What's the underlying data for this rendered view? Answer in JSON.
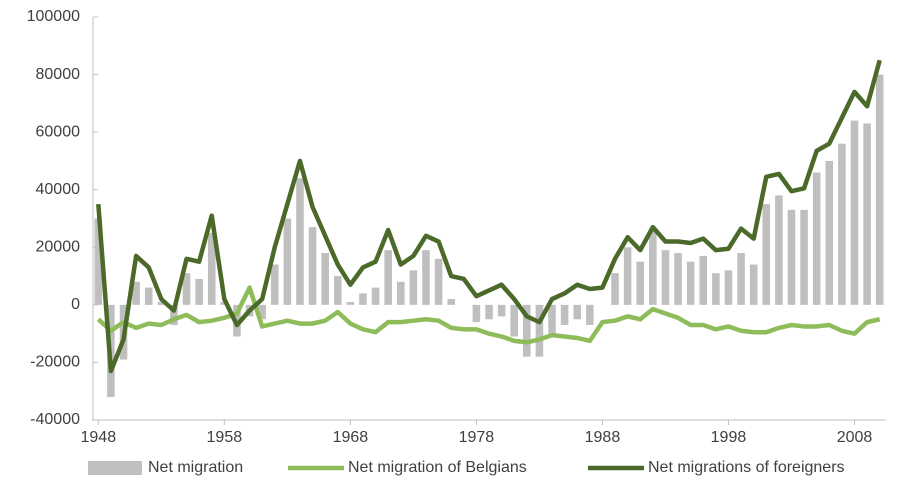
{
  "chart_data": {
    "type": "combo",
    "x": [
      1948,
      1949,
      1950,
      1951,
      1952,
      1953,
      1954,
      1955,
      1956,
      1957,
      1958,
      1959,
      1960,
      1961,
      1962,
      1963,
      1964,
      1965,
      1966,
      1967,
      1968,
      1969,
      1970,
      1971,
      1972,
      1973,
      1974,
      1975,
      1976,
      1977,
      1978,
      1979,
      1980,
      1981,
      1982,
      1983,
      1984,
      1985,
      1986,
      1987,
      1988,
      1989,
      1990,
      1991,
      1992,
      1993,
      1994,
      1995,
      1996,
      1997,
      1998,
      1999,
      2000,
      2001,
      2002,
      2003,
      2004,
      2005,
      2006,
      2007,
      2008,
      2009,
      2010
    ],
    "series": [
      {
        "name": "Net migration",
        "type": "bar",
        "color": "#bfbfbf",
        "values": [
          30000,
          -32000,
          -19000,
          8000,
          6000,
          1000,
          -7000,
          11000,
          9000,
          25000,
          1000,
          -11000,
          -4000,
          -5000,
          14000,
          30000,
          44000,
          27000,
          18000,
          10000,
          1000,
          4000,
          6000,
          19000,
          8000,
          12000,
          19000,
          16000,
          2000,
          0,
          -6000,
          -5000,
          -4000,
          -11000,
          -18000,
          -18000,
          -10000,
          -7000,
          -5000,
          -7000,
          0,
          11000,
          20000,
          15000,
          26000,
          19000,
          18000,
          15000,
          17000,
          11000,
          12000,
          18000,
          14000,
          35000,
          38000,
          33000,
          33000,
          46000,
          50000,
          56000,
          64000,
          63000,
          80000
        ]
      },
      {
        "name": "Net migration of Belgians",
        "type": "line",
        "color": "#8fbc5a",
        "values": [
          -5000,
          -9000,
          -6000,
          -8000,
          -6500,
          -7000,
          -5000,
          -3500,
          -6000,
          -5500,
          -4500,
          -3000,
          6000,
          -7500,
          -6500,
          -5500,
          -6500,
          -6500,
          -5500,
          -2500,
          -6500,
          -8500,
          -9500,
          -6000,
          -6000,
          -5500,
          -5000,
          -5500,
          -8000,
          -8500,
          -8500,
          -10000,
          -11000,
          -12500,
          -13000,
          -12000,
          -10500,
          -11000,
          -11500,
          -12500,
          -6000,
          -5500,
          -4000,
          -5000,
          -1500,
          -3000,
          -4500,
          -7000,
          -7000,
          -8500,
          -7500,
          -9000,
          -9500,
          -9500,
          -8000,
          -7000,
          -7500,
          -7500,
          -7000,
          -9000,
          -10000,
          -6000,
          -5000
        ]
      },
      {
        "name": "Net migrations of foreigners",
        "type": "line",
        "color": "#4b6a2a",
        "values": [
          35000,
          -23000,
          -12000,
          17000,
          13000,
          2000,
          -2000,
          16000,
          15000,
          31000,
          2000,
          -7000,
          -2000,
          2000,
          20000,
          35000,
          50000,
          34000,
          24000,
          14000,
          7000,
          13000,
          15000,
          26000,
          14000,
          17000,
          24000,
          22000,
          10000,
          9000,
          3000,
          5000,
          7000,
          2000,
          -4000,
          -6000,
          2000,
          4000,
          7000,
          5500,
          6000,
          16000,
          23500,
          19000,
          27000,
          22000,
          22000,
          21500,
          23000,
          19000,
          19500,
          26500,
          23000,
          44500,
          45500,
          39500,
          40500,
          53500,
          56000,
          65000,
          74000,
          69000,
          85000
        ]
      }
    ],
    "xlim": [
      1947.5,
      2010.5
    ],
    "xticks": [
      1948,
      1958,
      1968,
      1978,
      1988,
      1998,
      2008
    ],
    "ylim": [
      -40000,
      100000
    ],
    "yticks": [
      -40000,
      -20000,
      0,
      20000,
      40000,
      60000,
      80000,
      100000
    ],
    "grid": false,
    "legend": "bottom"
  }
}
